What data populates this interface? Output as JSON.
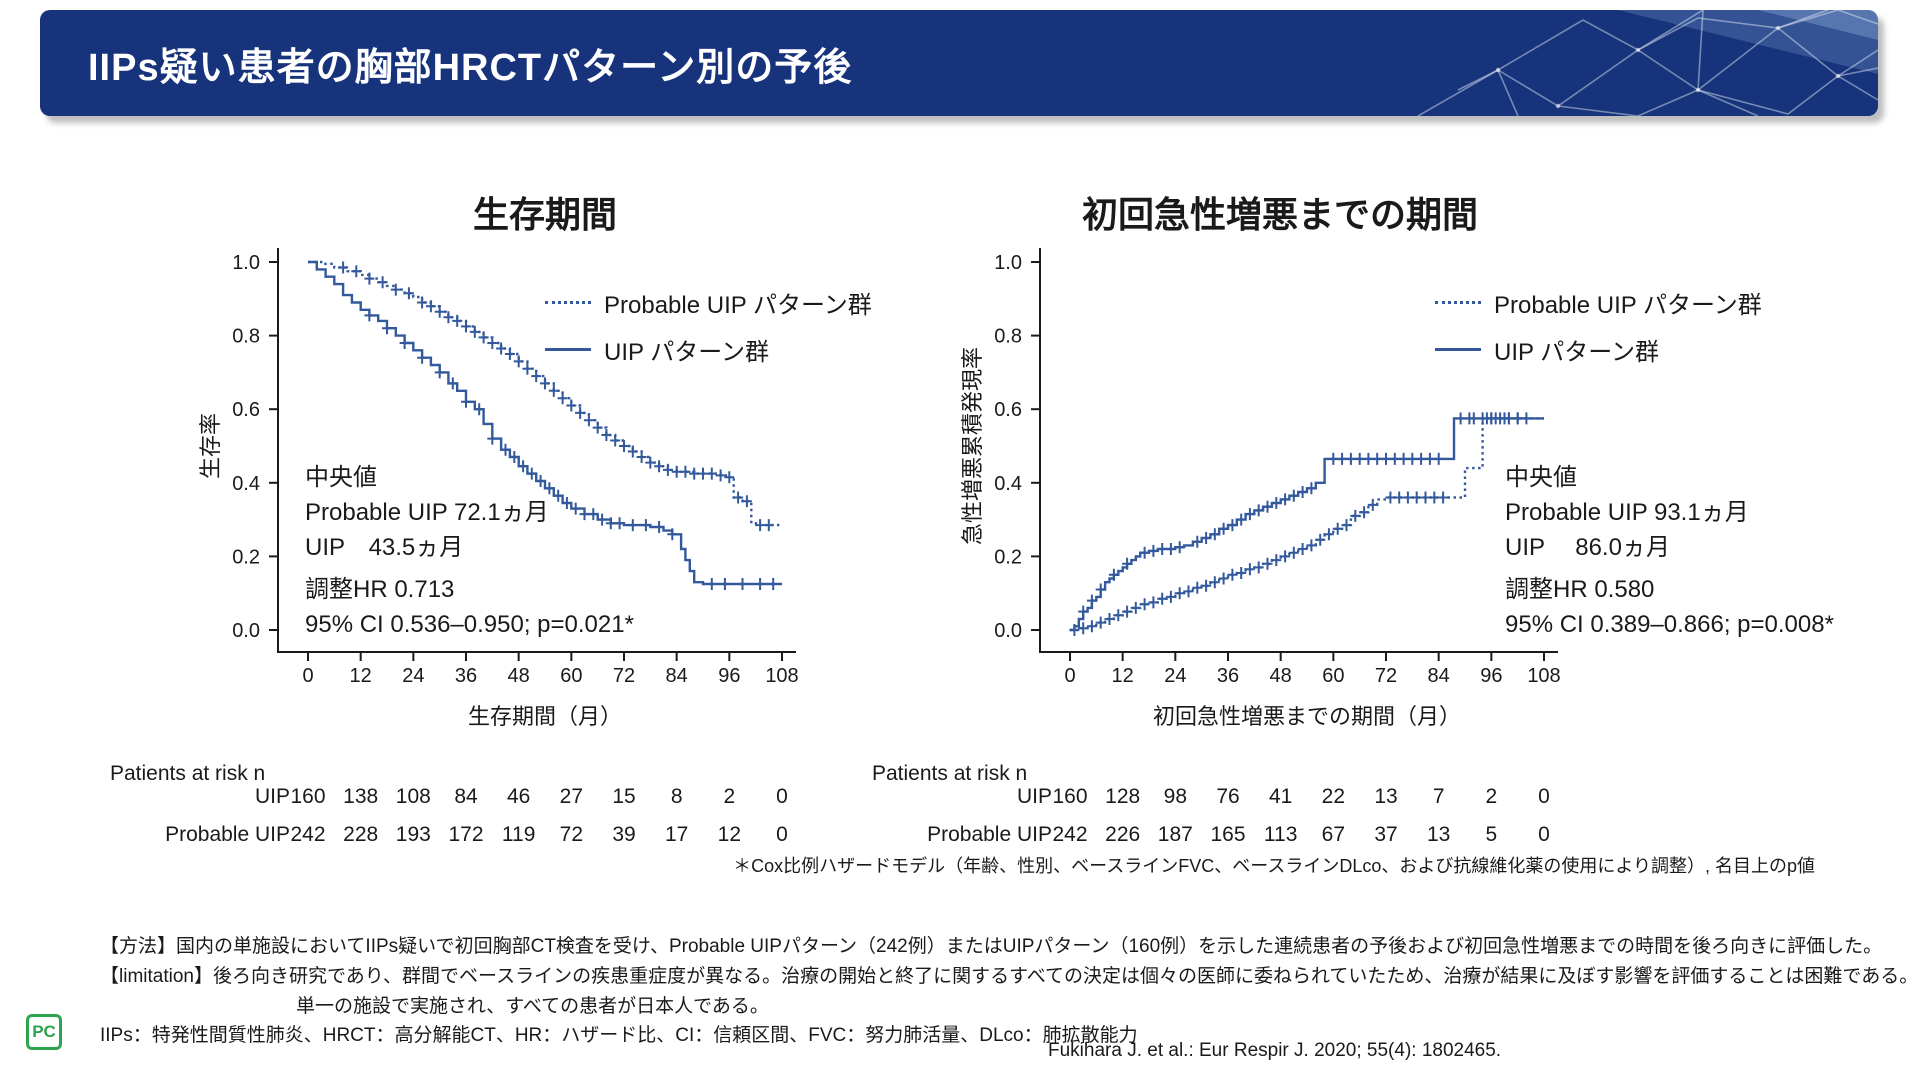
{
  "header": {
    "title": "IIPs疑い患者の胸部HRCTパターン別の予後"
  },
  "colors": {
    "header_navy": "#17337b",
    "curve_blue": "#33599c",
    "axis_black": "#1a1a1a",
    "logo_green": "#2da44e"
  },
  "logo": {
    "text": "PC"
  },
  "chart_data": [
    {
      "type": "line",
      "subtype": "kaplan-meier-step",
      "title": "生存期間",
      "xlabel": "生存期間（月）",
      "ylabel": "生存率",
      "xlim": [
        0,
        108
      ],
      "ylim": [
        0.0,
        1.0
      ],
      "x_ticks": [
        0,
        12,
        24,
        36,
        48,
        60,
        72,
        84,
        96,
        108
      ],
      "y_ticks": [
        0.0,
        0.2,
        0.4,
        0.6,
        0.8,
        1.0
      ],
      "grid": false,
      "legend_position": "upper right inside",
      "series": [
        {
          "name": "Probable UIP パターン群",
          "style": "dotted",
          "points": [
            [
              0,
              1.0
            ],
            [
              3,
              0.995
            ],
            [
              6,
              0.985
            ],
            [
              9,
              0.975
            ],
            [
              12,
              0.965
            ],
            [
              14,
              0.955
            ],
            [
              16,
              0.945
            ],
            [
              18,
              0.935
            ],
            [
              20,
              0.925
            ],
            [
              22,
              0.915
            ],
            [
              24,
              0.905
            ],
            [
              26,
              0.89
            ],
            [
              28,
              0.88
            ],
            [
              30,
              0.865
            ],
            [
              32,
              0.85
            ],
            [
              34,
              0.84
            ],
            [
              36,
              0.825
            ],
            [
              38,
              0.81
            ],
            [
              40,
              0.795
            ],
            [
              42,
              0.78
            ],
            [
              44,
              0.765
            ],
            [
              46,
              0.75
            ],
            [
              48,
              0.73
            ],
            [
              50,
              0.71
            ],
            [
              52,
              0.69
            ],
            [
              54,
              0.67
            ],
            [
              56,
              0.65
            ],
            [
              58,
              0.63
            ],
            [
              60,
              0.61
            ],
            [
              62,
              0.59
            ],
            [
              64,
              0.57
            ],
            [
              66,
              0.55
            ],
            [
              68,
              0.53
            ],
            [
              70,
              0.515
            ],
            [
              72,
              0.5
            ],
            [
              74,
              0.485
            ],
            [
              76,
              0.47
            ],
            [
              78,
              0.455
            ],
            [
              80,
              0.445
            ],
            [
              82,
              0.435
            ],
            [
              84,
              0.43
            ],
            [
              88,
              0.425
            ],
            [
              94,
              0.42
            ],
            [
              96,
              0.415
            ],
            [
              97,
              0.36
            ],
            [
              99,
              0.35
            ],
            [
              101,
              0.29
            ],
            [
              103,
              0.285
            ],
            [
              108,
              0.285
            ]
          ],
          "censors": [
            8,
            11,
            14,
            17,
            20,
            23,
            26,
            28,
            30,
            32,
            34,
            36,
            38,
            40,
            42,
            44,
            46,
            48,
            50,
            52,
            54,
            56,
            58,
            60,
            62,
            64,
            66,
            68,
            70,
            72,
            74,
            76,
            78,
            80,
            82,
            84,
            86,
            88,
            90,
            92,
            94,
            96,
            98,
            100,
            103,
            105
          ]
        },
        {
          "name": "UIP パターン群",
          "style": "solid",
          "points": [
            [
              0,
              1.0
            ],
            [
              2,
              0.98
            ],
            [
              4,
              0.96
            ],
            [
              6,
              0.94
            ],
            [
              8,
              0.91
            ],
            [
              10,
              0.89
            ],
            [
              12,
              0.87
            ],
            [
              14,
              0.855
            ],
            [
              16,
              0.84
            ],
            [
              18,
              0.82
            ],
            [
              20,
              0.8
            ],
            [
              22,
              0.78
            ],
            [
              24,
              0.76
            ],
            [
              26,
              0.74
            ],
            [
              28,
              0.72
            ],
            [
              30,
              0.7
            ],
            [
              32,
              0.67
            ],
            [
              34,
              0.65
            ],
            [
              36,
              0.62
            ],
            [
              38,
              0.6
            ],
            [
              40,
              0.56
            ],
            [
              42,
              0.52
            ],
            [
              44,
              0.49
            ],
            [
              46,
              0.47
            ],
            [
              48,
              0.445
            ],
            [
              50,
              0.425
            ],
            [
              52,
              0.405
            ],
            [
              54,
              0.385
            ],
            [
              56,
              0.365
            ],
            [
              58,
              0.345
            ],
            [
              60,
              0.33
            ],
            [
              63,
              0.315
            ],
            [
              66,
              0.3
            ],
            [
              69,
              0.29
            ],
            [
              72,
              0.285
            ],
            [
              78,
              0.28
            ],
            [
              81,
              0.27
            ],
            [
              83,
              0.26
            ],
            [
              85,
              0.22
            ],
            [
              86,
              0.19
            ],
            [
              87,
              0.16
            ],
            [
              88,
              0.13
            ],
            [
              90,
              0.125
            ],
            [
              108,
              0.125
            ]
          ],
          "censors": [
            14,
            18,
            22,
            26,
            30,
            33,
            36,
            39,
            42,
            45,
            47,
            49,
            51,
            53,
            55,
            57,
            59,
            61,
            63,
            65,
            67,
            69,
            71,
            74,
            77,
            80,
            83,
            92,
            95,
            99,
            103,
            106
          ]
        }
      ],
      "annotation": {
        "median_label": "中央値",
        "median_line1": "Probable UIP 72.1ヵ月",
        "median_line2": "UIP　43.5ヵ月",
        "hr_line1": "調整HR 0.713",
        "hr_line2": "95% CI 0.536–0.950; p=0.021*"
      },
      "risk_table": {
        "header": "Patients at risk n",
        "rows": [
          {
            "label": "UIP",
            "values": [
              160,
              138,
              108,
              84,
              46,
              27,
              15,
              8,
              2,
              0
            ]
          },
          {
            "label": "Probable UIP",
            "values": [
              242,
              228,
              193,
              172,
              119,
              72,
              39,
              17,
              12,
              0
            ]
          }
        ]
      }
    },
    {
      "type": "line",
      "subtype": "kaplan-meier-step",
      "title": "初回急性増悪までの期間",
      "xlabel": "初回急性増悪までの期間（月）",
      "ylabel": "急性増悪累積発現率",
      "xlim": [
        0,
        108
      ],
      "ylim": [
        0.0,
        1.0
      ],
      "x_ticks": [
        0,
        12,
        24,
        36,
        48,
        60,
        72,
        84,
        96,
        108
      ],
      "y_ticks": [
        0.0,
        0.2,
        0.4,
        0.6,
        0.8,
        1.0
      ],
      "grid": false,
      "legend_position": "upper right inside",
      "series": [
        {
          "name": "Probable UIP パターン群",
          "style": "dotted",
          "points": [
            [
              0,
              0
            ],
            [
              2,
              0.005
            ],
            [
              4,
              0.01
            ],
            [
              6,
              0.02
            ],
            [
              8,
              0.03
            ],
            [
              10,
              0.04
            ],
            [
              12,
              0.05
            ],
            [
              14,
              0.06
            ],
            [
              16,
              0.07
            ],
            [
              18,
              0.075
            ],
            [
              20,
              0.085
            ],
            [
              22,
              0.09
            ],
            [
              24,
              0.1
            ],
            [
              26,
              0.105
            ],
            [
              28,
              0.115
            ],
            [
              30,
              0.12
            ],
            [
              32,
              0.13
            ],
            [
              34,
              0.14
            ],
            [
              36,
              0.15
            ],
            [
              38,
              0.155
            ],
            [
              40,
              0.165
            ],
            [
              42,
              0.17
            ],
            [
              44,
              0.18
            ],
            [
              46,
              0.19
            ],
            [
              48,
              0.2
            ],
            [
              50,
              0.21
            ],
            [
              52,
              0.22
            ],
            [
              54,
              0.23
            ],
            [
              56,
              0.245
            ],
            [
              58,
              0.26
            ],
            [
              60,
              0.275
            ],
            [
              62,
              0.285
            ],
            [
              64,
              0.31
            ],
            [
              66,
              0.32
            ],
            [
              68,
              0.34
            ],
            [
              70,
              0.355
            ],
            [
              72,
              0.36
            ],
            [
              86,
              0.36
            ],
            [
              90,
              0.44
            ],
            [
              94,
              0.575
            ],
            [
              108,
              0.575
            ]
          ],
          "censors": [
            1,
            3,
            5,
            7,
            9,
            11,
            13,
            15,
            17,
            19,
            21,
            23,
            25,
            27,
            29,
            31,
            33,
            35,
            37,
            39,
            41,
            43,
            45,
            47,
            49,
            51,
            53,
            55,
            57,
            59,
            61,
            63,
            65,
            67,
            69,
            73,
            75,
            77,
            79,
            81,
            83,
            85,
            96,
            98,
            100,
            102,
            104
          ]
        },
        {
          "name": "UIP パターン群",
          "style": "solid",
          "points": [
            [
              0,
              0
            ],
            [
              1,
              0.01
            ],
            [
              2,
              0.03
            ],
            [
              3,
              0.05
            ],
            [
              4,
              0.06
            ],
            [
              5,
              0.08
            ],
            [
              6,
              0.09
            ],
            [
              7,
              0.11
            ],
            [
              8,
              0.13
            ],
            [
              9,
              0.14
            ],
            [
              10,
              0.15
            ],
            [
              11,
              0.16
            ],
            [
              12,
              0.17
            ],
            [
              13,
              0.18
            ],
            [
              14,
              0.19
            ],
            [
              15,
              0.2
            ],
            [
              16,
              0.21
            ],
            [
              18,
              0.215
            ],
            [
              20,
              0.22
            ],
            [
              24,
              0.225
            ],
            [
              26,
              0.23
            ],
            [
              28,
              0.24
            ],
            [
              30,
              0.25
            ],
            [
              32,
              0.26
            ],
            [
              34,
              0.275
            ],
            [
              36,
              0.285
            ],
            [
              38,
              0.3
            ],
            [
              40,
              0.315
            ],
            [
              42,
              0.325
            ],
            [
              44,
              0.335
            ],
            [
              46,
              0.345
            ],
            [
              48,
              0.355
            ],
            [
              50,
              0.365
            ],
            [
              52,
              0.375
            ],
            [
              54,
              0.385
            ],
            [
              56,
              0.4
            ],
            [
              58,
              0.465
            ],
            [
              87,
              0.465
            ],
            [
              87.5,
              0.575
            ],
            [
              108,
              0.575
            ]
          ],
          "censors": [
            3,
            5,
            7,
            10,
            13,
            17,
            19,
            21,
            23,
            25,
            29,
            31,
            33,
            35,
            37,
            39,
            41,
            43,
            45,
            47,
            49,
            51,
            53,
            55,
            60,
            62,
            64,
            66,
            68,
            70,
            72,
            74,
            76,
            78,
            80,
            82,
            84,
            89,
            91,
            92,
            94,
            95,
            96,
            97,
            99,
            100,
            102
          ]
        }
      ],
      "annotation": {
        "median_label": "中央値",
        "median_line1": "Probable UIP 93.1ヵ月",
        "median_line2": "UIP　 86.0ヵ月",
        "hr_line1": "調整HR 0.580",
        "hr_line2": "95% CI 0.389–0.866; p=0.008*"
      },
      "risk_table": {
        "header": "Patients at risk n",
        "rows": [
          {
            "label": "UIP",
            "values": [
              160,
              128,
              98,
              76,
              41,
              22,
              13,
              7,
              2,
              0
            ]
          },
          {
            "label": "Probable UIP",
            "values": [
              242,
              226,
              187,
              165,
              113,
              67,
              37,
              13,
              5,
              0
            ]
          }
        ]
      }
    }
  ],
  "footnotes": {
    "cox": "＊Cox比例ハザードモデル（年齢、性別、ベースラインFVC、ベースラインDLco、および抗線維化薬の使用により調整）, 名目上のp値",
    "method_line1": "【方法】国内の単施設においてIIPs疑いで初回胸部CT検査を受け、Probable UIPパターン（242例）またはUIPパターン（160例）を示した連続患者の予後および初回急性増悪までの時間を後ろ向きに評価した。",
    "method_line2": "【limitation】後ろ向き研究であり、群間でベースラインの疾患重症度が異なる。治療の開始と終了に関するすべての決定は個々の医師に委ねられていたため、治療が結果に及ぼす影響を評価することは困難である。",
    "method_line3": "単一の施設で実施され、すべての患者が日本人である。",
    "abbreviations": "IIPs：特発性間質性肺炎、HRCT：高分解能CT、HR：ハザード比、CI：信頼区間、FVC：努力肺活量、DLco：肺拡散能力",
    "citation": "Fukihara J. et al.: Eur Respir J. 2020; 55(4): 1802465."
  }
}
